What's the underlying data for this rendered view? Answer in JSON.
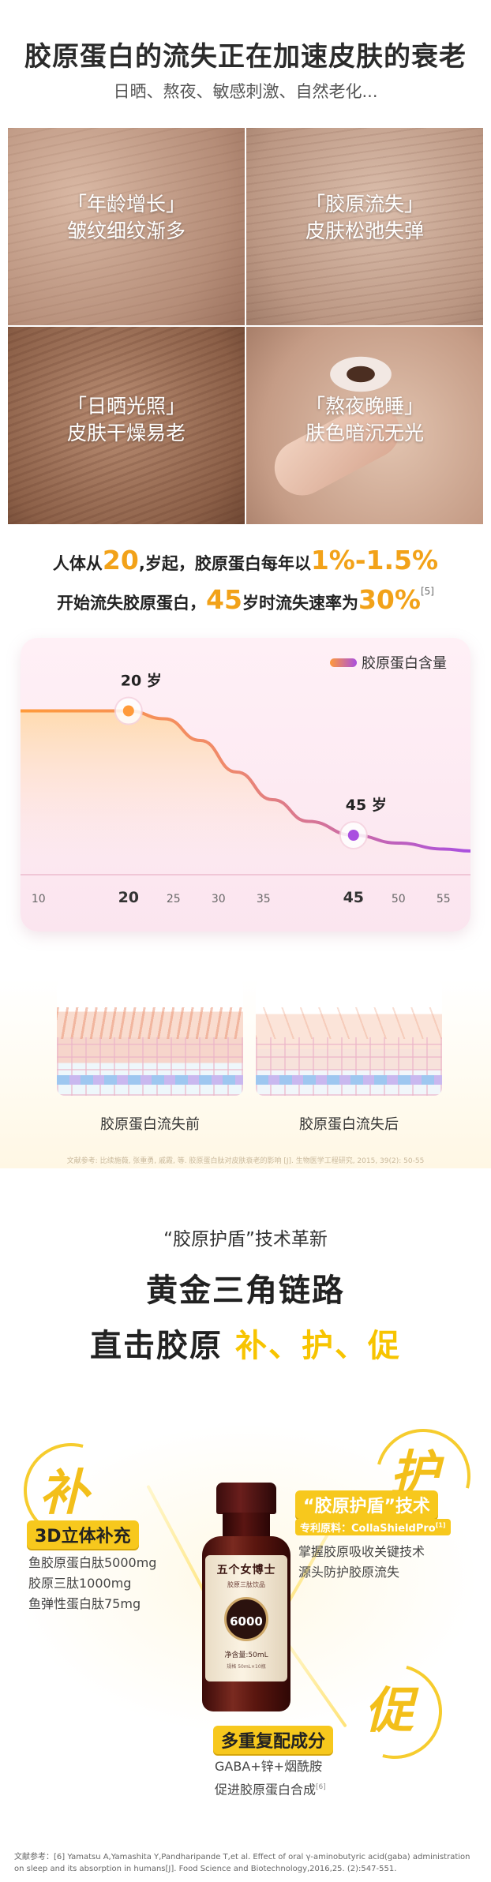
{
  "headline": {
    "title": "胶原蛋白的流失正在加速皮肤的衰老",
    "subtitle": "日晒、熬夜、敏感刺激、自然老化..."
  },
  "photos": [
    {
      "tag": "「年龄增长」",
      "desc": "皱纹细纹渐多"
    },
    {
      "tag": "「胶原流失」",
      "desc": "皮肤松弛失弹"
    },
    {
      "tag": "「日晒光照」",
      "desc": "皮肤干燥易老"
    },
    {
      "tag": "「熬夜晚睡」",
      "desc": "肤色暗沉无光"
    }
  ],
  "stats": {
    "line1_a": "人体从",
    "line1_age": "20",
    "line1_b": ",岁起，胶原蛋白每年以",
    "line1_rate": "1%-1.5%",
    "line2_a": "开始流失胶原蛋白，",
    "line2_age": "45",
    "line2_b": "岁时流失速率为",
    "line2_rate": "30%",
    "line2_ref": "[5]"
  },
  "chart_data": {
    "type": "line",
    "title": "",
    "xlabel": "",
    "ylabel": "",
    "legend": "胶原蛋白含量",
    "legend_position": "top-right",
    "x_ticks": [
      10,
      20,
      25,
      30,
      35,
      45,
      50,
      55
    ],
    "xlim": [
      8,
      58
    ],
    "ylim": [
      0,
      100
    ],
    "series": [
      {
        "name": "胶原蛋白含量",
        "x": [
          8,
          14,
          20,
          24,
          28,
          32,
          36,
          40,
          45,
          50,
          55,
          58
        ],
        "y": [
          79,
          79,
          79,
          75,
          64,
          48,
          34,
          23,
          16,
          12,
          9,
          8
        ]
      }
    ],
    "annotations": [
      {
        "x": 20,
        "y": 79,
        "label": "20 岁",
        "color": "#ff9a3a"
      },
      {
        "x": 45,
        "y": 16,
        "label": "45 岁",
        "color": "#a94fe0"
      }
    ]
  },
  "skin_compare": {
    "before": "胶原蛋白流失前",
    "after": "胶原蛋白流失后"
  },
  "ref_top": "文献参考: 比续施薇, 张重勇, 戚霞, 等. 胶原蛋白肽对皮肤衰老的影响 [J]. 生物医学工程研究, 2015, 39(2): 50-55",
  "section2": {
    "intro": "“胶原护盾”技术革新",
    "title": "黄金三角链路",
    "subtitle_a": "直击胶原 ",
    "subtitle_b": "补、护、促"
  },
  "bu": {
    "char": "补",
    "badge": "3D立体补充",
    "items": [
      "鱼胶原蛋白肽5000mg",
      "胶原三肽1000mg",
      "鱼弹性蛋白肽75mg"
    ]
  },
  "hu": {
    "char": "护",
    "badge": "“胶原护盾”技术",
    "patent_label": "专利原料：",
    "patent_name": "CollaShieldPro",
    "patent_ref": "[1]",
    "items": [
      "掌握胶原吸收关键技术",
      "源头防护胶原流失"
    ]
  },
  "cu": {
    "char": "促",
    "badge": "多重复配成分",
    "items": [
      "GABA+锌+烟酰胺",
      "促进胶原蛋白合成"
    ],
    "ref": "[6]"
  },
  "bottle": {
    "brand": "五个女博士",
    "sub": "胶原三肽饮品",
    "num": "6000",
    "vol": "净含量:50mL",
    "small": "规格 50mL×10瓶"
  },
  "ref_bottom": "文献参考：[6] Yamatsu A,Yamashita Y,Pandharipande T,et al. Effect of oral γ-aminobutyric acid(gaba) administration on sleep and its absorption in humans[J]. Food Science and Biotechnology,2016,25. (2):547-551."
}
